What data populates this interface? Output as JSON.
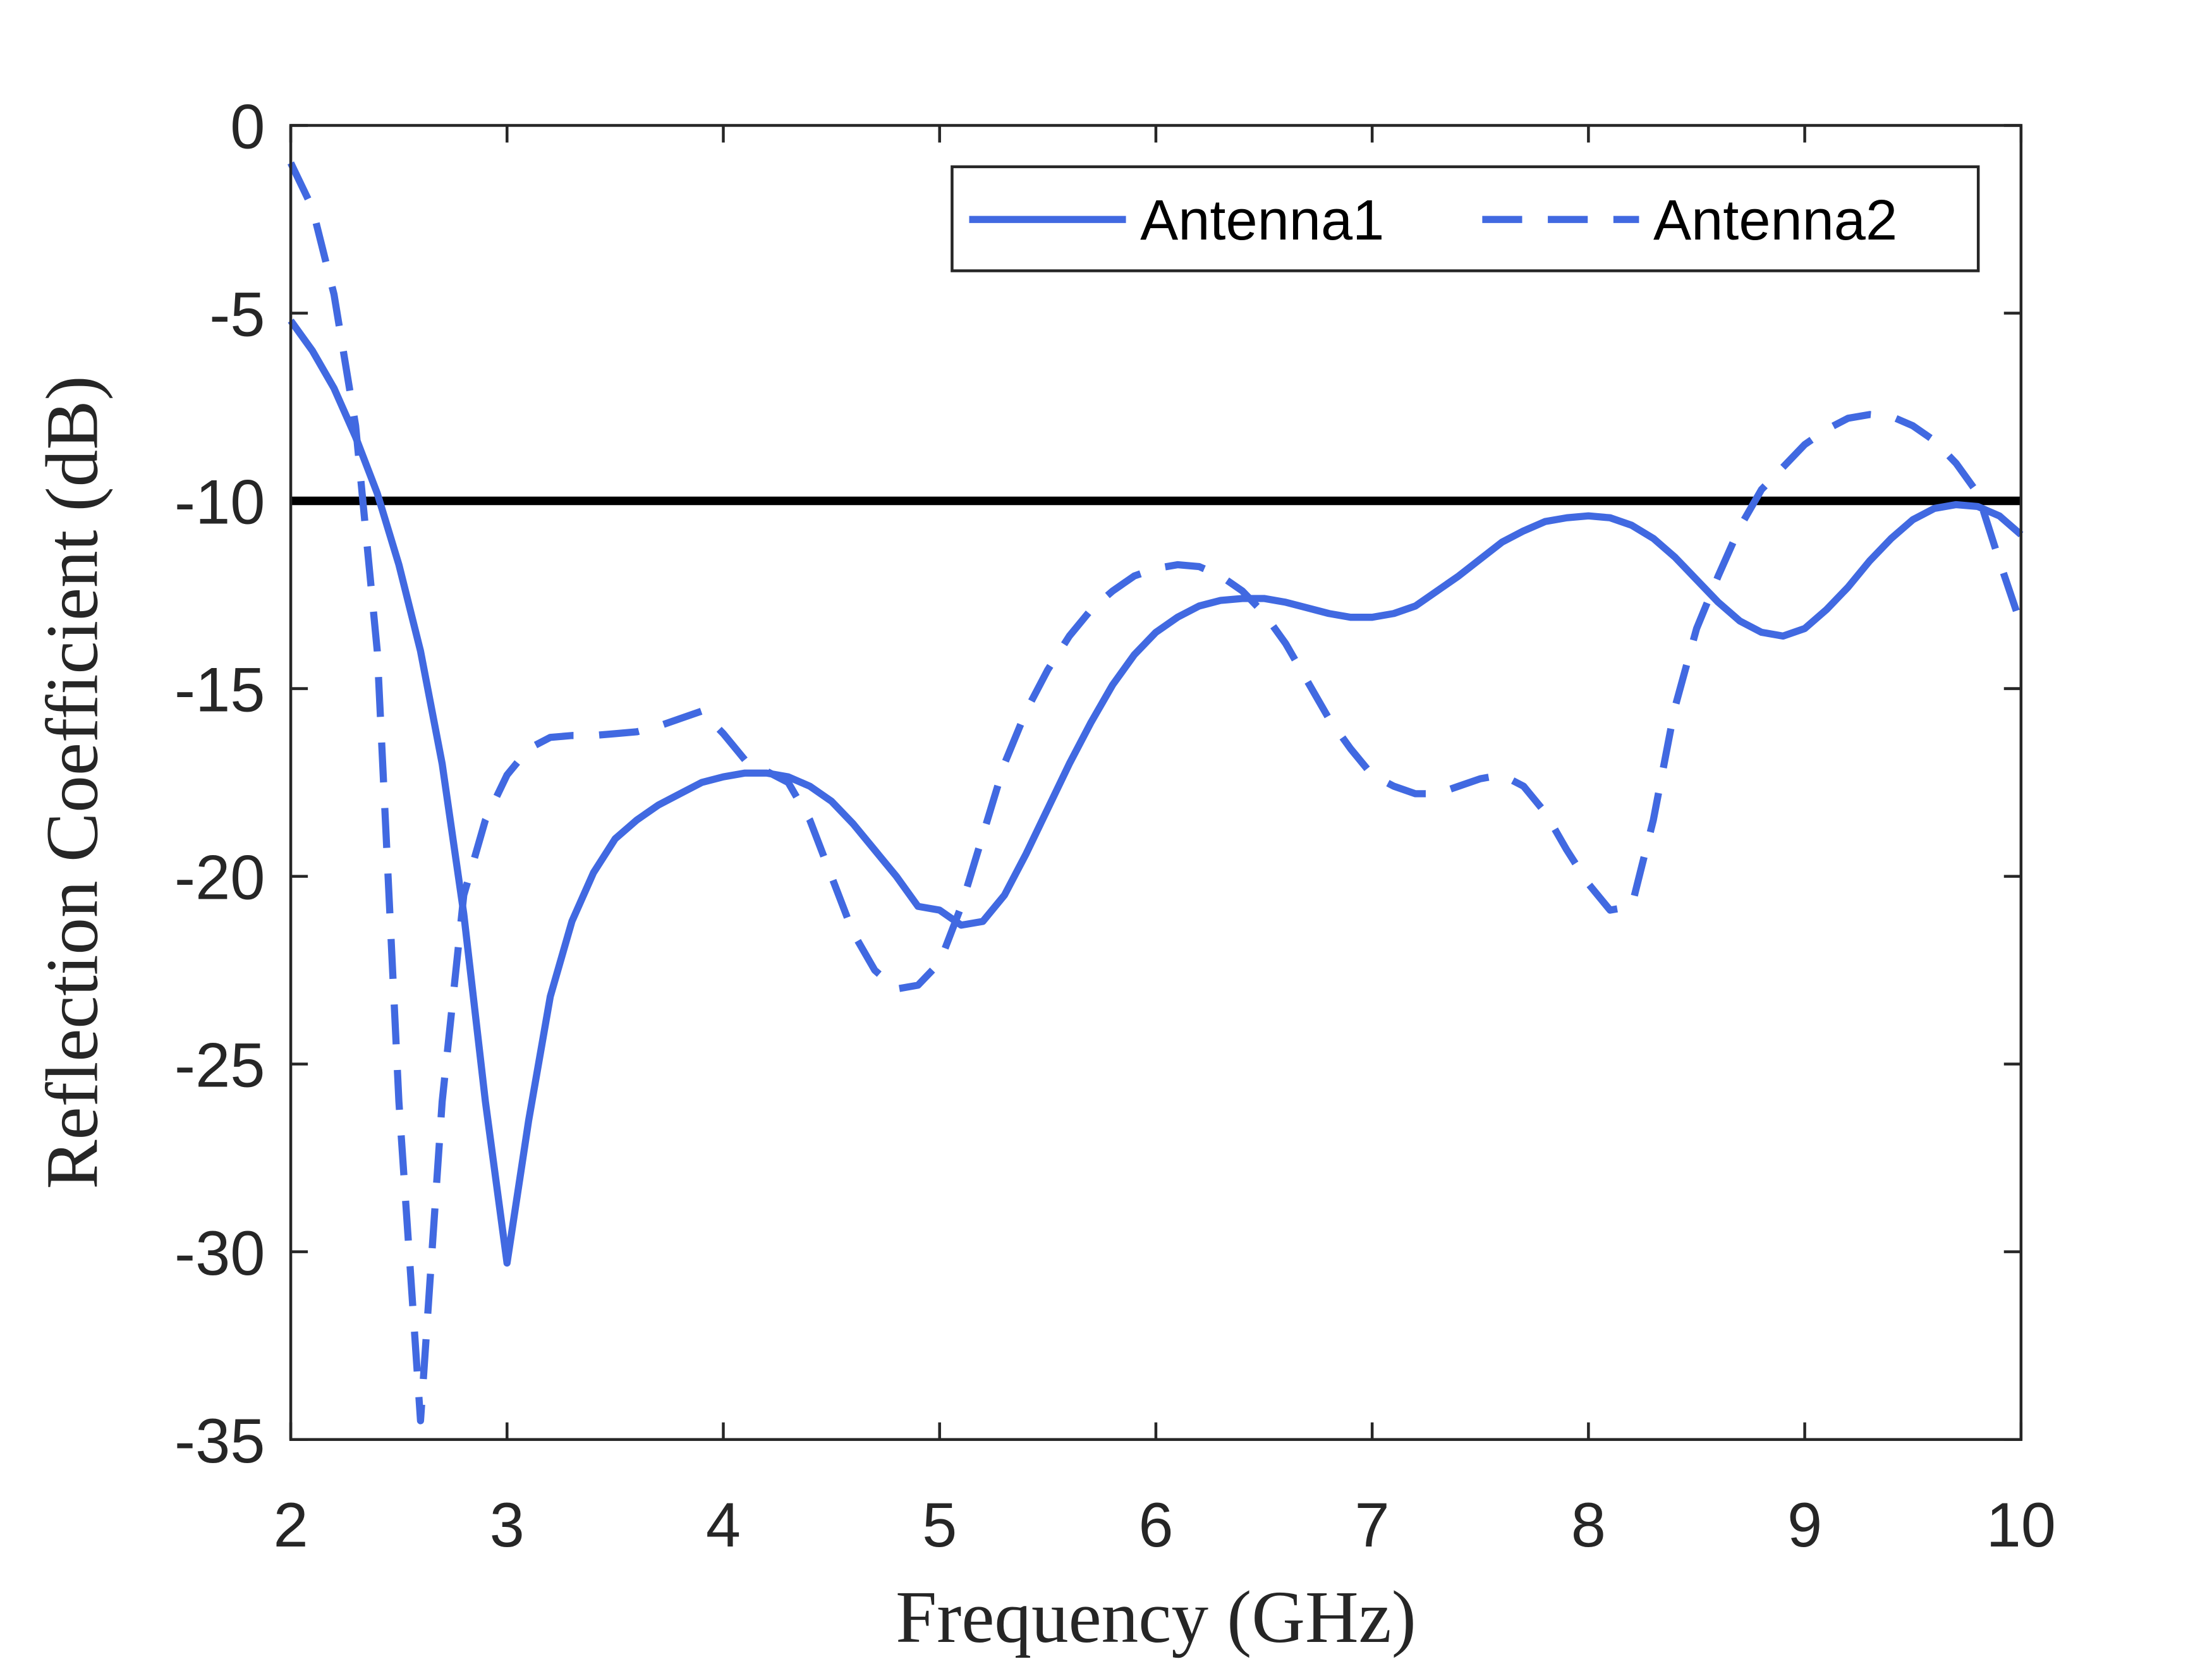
{
  "chart_data": {
    "type": "line",
    "xlabel": "Frequency (GHz)",
    "ylabel": "Reflection Coefficient (dB)",
    "x": [
      2.0,
      2.1,
      2.2,
      2.3,
      2.4,
      2.5,
      2.6,
      2.7,
      2.8,
      2.9,
      3.0,
      3.1,
      3.2,
      3.3,
      3.4,
      3.5,
      3.6,
      3.7,
      3.8,
      3.9,
      4.0,
      4.1,
      4.2,
      4.3,
      4.4,
      4.5,
      4.6,
      4.7,
      4.8,
      4.9,
      5.0,
      5.1,
      5.2,
      5.3,
      5.4,
      5.5,
      5.6,
      5.7,
      5.8,
      5.9,
      6.0,
      6.1,
      6.2,
      6.3,
      6.4,
      6.5,
      6.6,
      6.7,
      6.8,
      6.9,
      7.0,
      7.1,
      7.2,
      7.3,
      7.4,
      7.5,
      7.6,
      7.7,
      7.8,
      7.9,
      8.0,
      8.1,
      8.2,
      8.3,
      8.4,
      8.5,
      8.6,
      8.7,
      8.8,
      8.9,
      9.0,
      9.1,
      9.2,
      9.3,
      9.4,
      9.5,
      9.6,
      9.7,
      9.8,
      9.9,
      10.0
    ],
    "series": [
      {
        "name": "Antenna1",
        "color": "#4169e1",
        "dash": false,
        "values": [
          -5.2,
          -6.0,
          -7.0,
          -8.3,
          -9.8,
          -11.7,
          -14.0,
          -17.0,
          -21.0,
          -26.0,
          -30.3,
          -26.5,
          -23.2,
          -21.2,
          -19.9,
          -19.0,
          -18.5,
          -18.1,
          -17.8,
          -17.5,
          -17.35,
          -17.25,
          -17.25,
          -17.35,
          -17.6,
          -18.0,
          -18.6,
          -19.3,
          -20.0,
          -20.8,
          -20.9,
          -21.3,
          -21.2,
          -20.5,
          -19.4,
          -18.2,
          -17.0,
          -15.9,
          -14.9,
          -14.1,
          -13.5,
          -13.1,
          -12.8,
          -12.65,
          -12.6,
          -12.6,
          -12.7,
          -12.85,
          -13.0,
          -13.1,
          -13.1,
          -13.0,
          -12.8,
          -12.4,
          -12.0,
          -11.55,
          -11.1,
          -10.8,
          -10.55,
          -10.45,
          -10.4,
          -10.45,
          -10.65,
          -11.0,
          -11.5,
          -12.1,
          -12.7,
          -13.2,
          -13.5,
          -13.6,
          -13.4,
          -12.9,
          -12.3,
          -11.6,
          -11.0,
          -10.5,
          -10.2,
          -10.1,
          -10.15,
          -10.4,
          -10.9
        ]
      },
      {
        "name": "Antenna2",
        "color": "#4169e1",
        "dash": true,
        "values": [
          -1.0,
          -2.2,
          -4.5,
          -8.0,
          -14.0,
          -26.0,
          -34.5,
          -26.0,
          -20.5,
          -18.5,
          -17.3,
          -16.6,
          -16.3,
          -16.25,
          -16.25,
          -16.2,
          -16.15,
          -16.0,
          -15.8,
          -15.6,
          -16.2,
          -16.9,
          -17.2,
          -17.5,
          -18.5,
          -20.0,
          -21.5,
          -22.5,
          -23.0,
          -22.9,
          -22.3,
          -20.8,
          -18.9,
          -17.0,
          -15.6,
          -14.5,
          -13.6,
          -12.9,
          -12.4,
          -12.0,
          -11.8,
          -11.7,
          -11.75,
          -12.0,
          -12.4,
          -13.0,
          -13.8,
          -14.8,
          -15.8,
          -16.6,
          -17.3,
          -17.6,
          -17.8,
          -17.8,
          -17.6,
          -17.4,
          -17.3,
          -17.6,
          -18.3,
          -19.3,
          -20.2,
          -20.9,
          -20.8,
          -18.5,
          -15.5,
          -13.4,
          -12.0,
          -10.7,
          -9.7,
          -9.1,
          -8.5,
          -8.1,
          -7.8,
          -7.7,
          -7.75,
          -8.0,
          -8.4,
          -9.0,
          -9.8,
          -11.6,
          -13.3
        ]
      }
    ],
    "hline": -10,
    "hline_color": "#000000",
    "xlim": [
      2,
      10
    ],
    "xticks": [
      2,
      3,
      4,
      5,
      6,
      7,
      8,
      9,
      10
    ],
    "ylim": [
      -35,
      0
    ],
    "yticks": [
      -35,
      -30,
      -25,
      -20,
      -15,
      -10,
      -5,
      0
    ],
    "grid": false,
    "legend": "top-right"
  }
}
